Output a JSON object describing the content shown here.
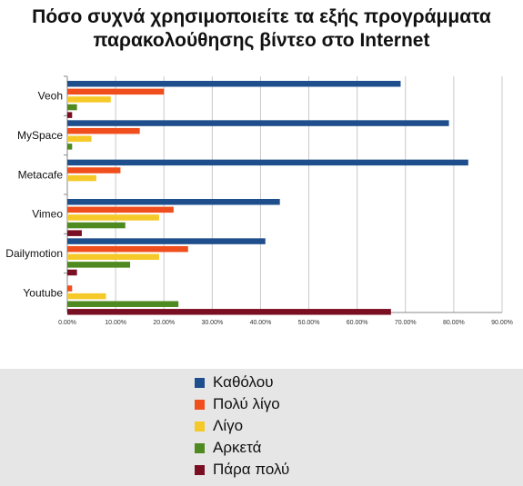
{
  "chart_data": {
    "type": "bar",
    "orientation": "horizontal",
    "title_lines": [
      "Πόσο συχνά χρησιμοποιείτε τα εξής προγράμματα",
      "παρακολούθησης βίντεο στο Internet"
    ],
    "categories": [
      "Veoh",
      "MySpace",
      "Metacafe",
      "Vimeo",
      "Dailymotion",
      "Youtube"
    ],
    "series": [
      {
        "name": "Καθόλου",
        "color": "#1f4e8c",
        "values": [
          69,
          79,
          83,
          44,
          41,
          0
        ]
      },
      {
        "name": "Πολύ λίγο",
        "color": "#f04e1c",
        "values": [
          20,
          15,
          11,
          22,
          25,
          1
        ]
      },
      {
        "name": "Λίγο",
        "color": "#f5c928",
        "values": [
          9,
          5,
          6,
          19,
          19,
          8
        ]
      },
      {
        "name": "Αρκετά",
        "color": "#4e8a1f",
        "values": [
          2,
          1,
          0,
          12,
          13,
          23
        ]
      },
      {
        "name": "Πάρα πολύ",
        "color": "#7a0f23",
        "values": [
          1,
          0,
          0,
          3,
          2,
          67
        ]
      }
    ],
    "xlim": [
      0,
      90
    ],
    "xticks": [
      "0.00%",
      "10.00%",
      "20.00%",
      "30.00%",
      "40.00%",
      "50.00%",
      "60.00%",
      "70.00%",
      "80.00%",
      "90.00%"
    ],
    "grid": true,
    "legend_position": "bottom"
  }
}
